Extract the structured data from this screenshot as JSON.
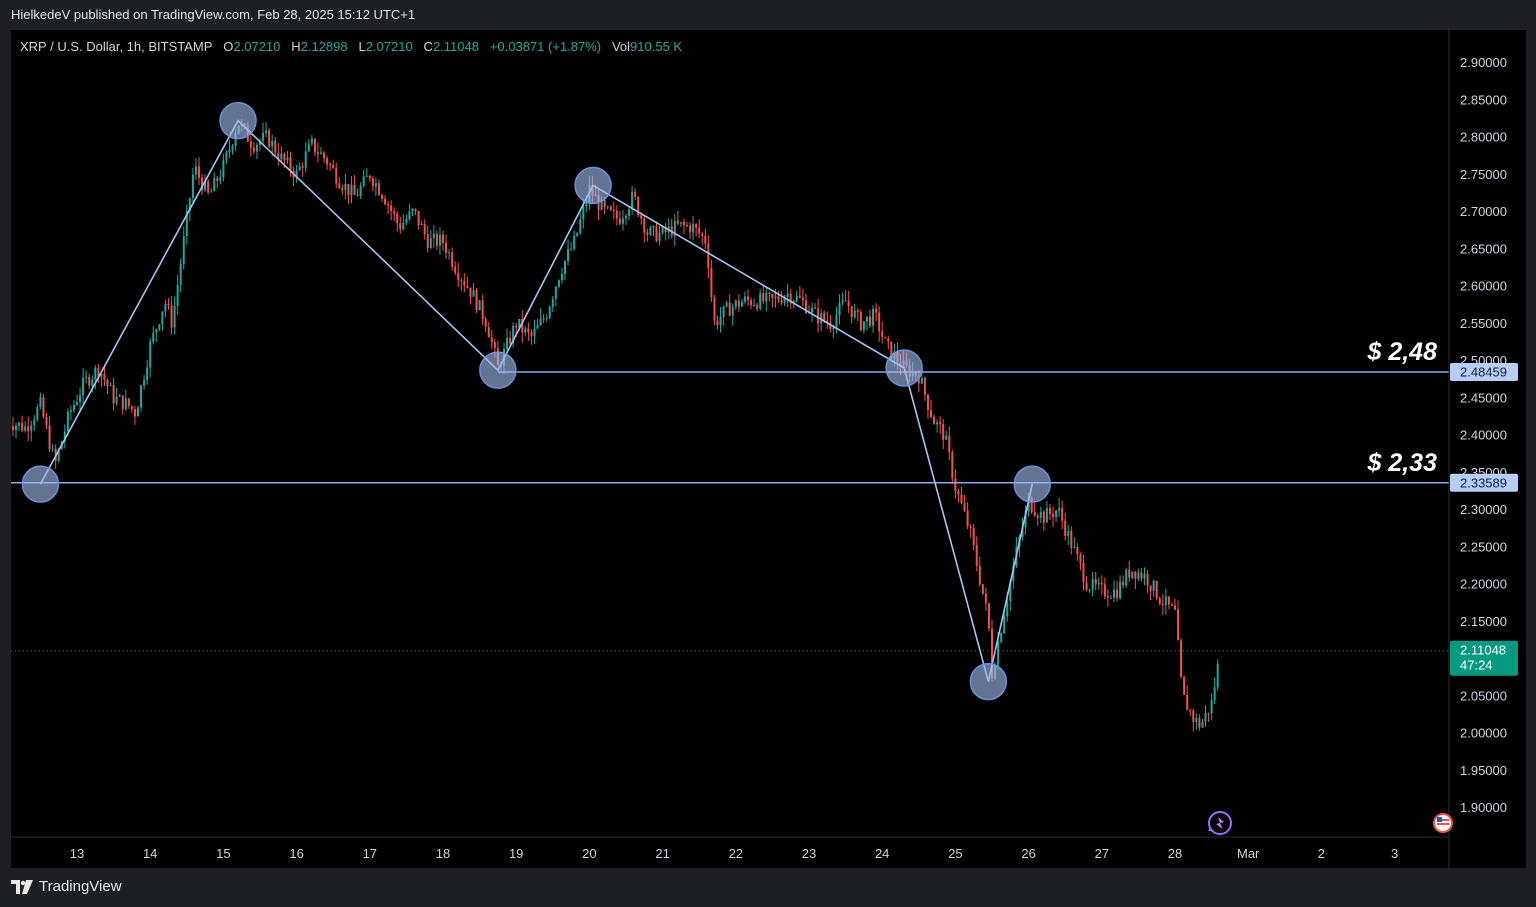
{
  "header": {
    "publisher_line": "HielkedeV published on TradingView.com, Feb 28, 2025 15:12 UTC+1"
  },
  "legend": {
    "symbol": "XRP / U.S. Dollar, 1h, BITSTAMP",
    "o_label": "O",
    "o_value": "2.07210",
    "h_label": "H",
    "h_value": "2.12898",
    "l_label": "L",
    "l_value": "2.07210",
    "c_label": "C",
    "c_value": "2.11048",
    "change": "+0.03871 (+1.87%)",
    "vol_label": "Vol",
    "vol_value": "910.55 K"
  },
  "footer": {
    "brand": "TradingView",
    "logo_icon": "tradingview-logo-icon"
  },
  "colors": {
    "up": "#26a69a",
    "down": "#ef5350",
    "pattern": "#a9c3f0",
    "level_line": "#8fa9e6",
    "last_price": "#089981"
  },
  "chart_data": {
    "type": "candlestick",
    "title": "",
    "xlabel": "",
    "ylabel": "",
    "ylim": [
      1.865,
      2.93
    ],
    "x_ticks": [
      {
        "label": "13",
        "day": 13
      },
      {
        "label": "14",
        "day": 14
      },
      {
        "label": "15",
        "day": 15
      },
      {
        "label": "16",
        "day": 16
      },
      {
        "label": "17",
        "day": 17
      },
      {
        "label": "18",
        "day": 18
      },
      {
        "label": "19",
        "day": 19
      },
      {
        "label": "20",
        "day": 20
      },
      {
        "label": "21",
        "day": 21
      },
      {
        "label": "22",
        "day": 22
      },
      {
        "label": "23",
        "day": 23
      },
      {
        "label": "24",
        "day": 24
      },
      {
        "label": "25",
        "day": 25
      },
      {
        "label": "26",
        "day": 26
      },
      {
        "label": "27",
        "day": 27
      },
      {
        "label": "28",
        "day": 28
      },
      {
        "label": "Mar",
        "day": 29
      },
      {
        "label": "2",
        "day": 30
      },
      {
        "label": "3",
        "day": 31
      }
    ],
    "y_ticks": [
      {
        "label": "2.90000",
        "value": 2.9
      },
      {
        "label": "2.85000",
        "value": 2.85
      },
      {
        "label": "2.80000",
        "value": 2.8
      },
      {
        "label": "2.75000",
        "value": 2.75
      },
      {
        "label": "2.70000",
        "value": 2.7
      },
      {
        "label": "2.65000",
        "value": 2.65
      },
      {
        "label": "2.60000",
        "value": 2.6
      },
      {
        "label": "2.55000",
        "value": 2.55
      },
      {
        "label": "2.50000",
        "value": 2.5
      },
      {
        "label": "2.45000",
        "value": 2.45
      },
      {
        "label": "2.40000",
        "value": 2.4
      },
      {
        "label": "2.35000",
        "value": 2.35
      },
      {
        "label": "2.30000",
        "value": 2.3
      },
      {
        "label": "2.25000",
        "value": 2.25
      },
      {
        "label": "2.20000",
        "value": 2.2
      },
      {
        "label": "2.15000",
        "value": 2.15
      },
      {
        "label": "2.05000",
        "value": 2.05
      },
      {
        "label": "2.00000",
        "value": 2.0
      },
      {
        "label": "1.95000",
        "value": 1.95
      },
      {
        "label": "1.90000",
        "value": 1.9
      }
    ],
    "path_points": [
      {
        "day": 12.0,
        "price": 2.42
      },
      {
        "day": 12.3,
        "price": 2.41
      },
      {
        "day": 12.5,
        "price": 2.44
      },
      {
        "day": 12.7,
        "price": 2.36
      },
      {
        "day": 12.9,
        "price": 2.43
      },
      {
        "day": 13.1,
        "price": 2.47
      },
      {
        "day": 13.3,
        "price": 2.49
      },
      {
        "day": 13.5,
        "price": 2.45
      },
      {
        "day": 13.7,
        "price": 2.44
      },
      {
        "day": 13.8,
        "price": 2.43
      },
      {
        "day": 14.0,
        "price": 2.52
      },
      {
        "day": 14.2,
        "price": 2.58
      },
      {
        "day": 14.3,
        "price": 2.55
      },
      {
        "day": 14.4,
        "price": 2.62
      },
      {
        "day": 14.6,
        "price": 2.76
      },
      {
        "day": 14.8,
        "price": 2.72
      },
      {
        "day": 15.0,
        "price": 2.76
      },
      {
        "day": 15.2,
        "price": 2.82
      },
      {
        "day": 15.4,
        "price": 2.79
      },
      {
        "day": 15.6,
        "price": 2.8
      },
      {
        "day": 15.8,
        "price": 2.77
      },
      {
        "day": 16.0,
        "price": 2.75
      },
      {
        "day": 16.2,
        "price": 2.79
      },
      {
        "day": 16.4,
        "price": 2.77
      },
      {
        "day": 16.6,
        "price": 2.74
      },
      {
        "day": 16.8,
        "price": 2.72
      },
      {
        "day": 17.0,
        "price": 2.75
      },
      {
        "day": 17.2,
        "price": 2.72
      },
      {
        "day": 17.4,
        "price": 2.68
      },
      {
        "day": 17.6,
        "price": 2.7
      },
      {
        "day": 17.8,
        "price": 2.66
      },
      {
        "day": 18.0,
        "price": 2.66
      },
      {
        "day": 18.2,
        "price": 2.62
      },
      {
        "day": 18.4,
        "price": 2.59
      },
      {
        "day": 18.6,
        "price": 2.55
      },
      {
        "day": 18.75,
        "price": 2.49
      },
      {
        "day": 19.0,
        "price": 2.55
      },
      {
        "day": 19.2,
        "price": 2.53
      },
      {
        "day": 19.4,
        "price": 2.56
      },
      {
        "day": 19.6,
        "price": 2.62
      },
      {
        "day": 19.8,
        "price": 2.66
      },
      {
        "day": 20.0,
        "price": 2.73
      },
      {
        "day": 20.2,
        "price": 2.7
      },
      {
        "day": 20.4,
        "price": 2.69
      },
      {
        "day": 20.6,
        "price": 2.72
      },
      {
        "day": 20.8,
        "price": 2.67
      },
      {
        "day": 21.0,
        "price": 2.67
      },
      {
        "day": 21.2,
        "price": 2.68
      },
      {
        "day": 21.4,
        "price": 2.68
      },
      {
        "day": 21.6,
        "price": 2.66
      },
      {
        "day": 21.7,
        "price": 2.55
      },
      {
        "day": 21.9,
        "price": 2.57
      },
      {
        "day": 22.1,
        "price": 2.58
      },
      {
        "day": 22.3,
        "price": 2.58
      },
      {
        "day": 22.5,
        "price": 2.58
      },
      {
        "day": 22.7,
        "price": 2.59
      },
      {
        "day": 22.9,
        "price": 2.58
      },
      {
        "day": 23.1,
        "price": 2.56
      },
      {
        "day": 23.3,
        "price": 2.55
      },
      {
        "day": 23.5,
        "price": 2.58
      },
      {
        "day": 23.7,
        "price": 2.55
      },
      {
        "day": 23.9,
        "price": 2.56
      },
      {
        "day": 24.05,
        "price": 2.52
      },
      {
        "day": 24.3,
        "price": 2.49
      },
      {
        "day": 24.5,
        "price": 2.48
      },
      {
        "day": 24.7,
        "price": 2.42
      },
      {
        "day": 24.85,
        "price": 2.4
      },
      {
        "day": 25.0,
        "price": 2.33
      },
      {
        "day": 25.2,
        "price": 2.27
      },
      {
        "day": 25.35,
        "price": 2.2
      },
      {
        "day": 25.45,
        "price": 2.15
      },
      {
        "day": 25.5,
        "price": 2.08
      },
      {
        "day": 25.7,
        "price": 2.18
      },
      {
        "day": 25.85,
        "price": 2.25
      },
      {
        "day": 26.0,
        "price": 2.31
      },
      {
        "day": 26.2,
        "price": 2.29
      },
      {
        "day": 26.4,
        "price": 2.3
      },
      {
        "day": 26.6,
        "price": 2.25
      },
      {
        "day": 26.8,
        "price": 2.2
      },
      {
        "day": 27.0,
        "price": 2.19
      },
      {
        "day": 27.2,
        "price": 2.19
      },
      {
        "day": 27.4,
        "price": 2.22
      },
      {
        "day": 27.6,
        "price": 2.21
      },
      {
        "day": 27.8,
        "price": 2.18
      },
      {
        "day": 28.0,
        "price": 2.16
      },
      {
        "day": 28.1,
        "price": 2.05
      },
      {
        "day": 28.25,
        "price": 2.02
      },
      {
        "day": 28.35,
        "price": 2.01
      },
      {
        "day": 28.5,
        "price": 2.04
      },
      {
        "day": 28.62,
        "price": 2.11
      }
    ],
    "zigzag": [
      {
        "day": 12.5,
        "price": 2.334
      },
      {
        "day": 15.2,
        "price": 2.822
      },
      {
        "day": 18.75,
        "price": 2.487
      },
      {
        "day": 20.05,
        "price": 2.735
      },
      {
        "day": 24.3,
        "price": 2.49
      },
      {
        "day": 25.45,
        "price": 2.069
      },
      {
        "day": 26.05,
        "price": 2.334
      }
    ],
    "levels": [
      {
        "value": 2.48459,
        "label": "2.48459",
        "annotation": "$ 2,48",
        "start_day": 18.75
      },
      {
        "value": 2.33589,
        "label": "2.33589",
        "annotation": "$ 2,33",
        "start_day": 12.0
      }
    ],
    "last_price": {
      "value": 2.11048,
      "label": "2.11048",
      "countdown": "47:24"
    }
  }
}
